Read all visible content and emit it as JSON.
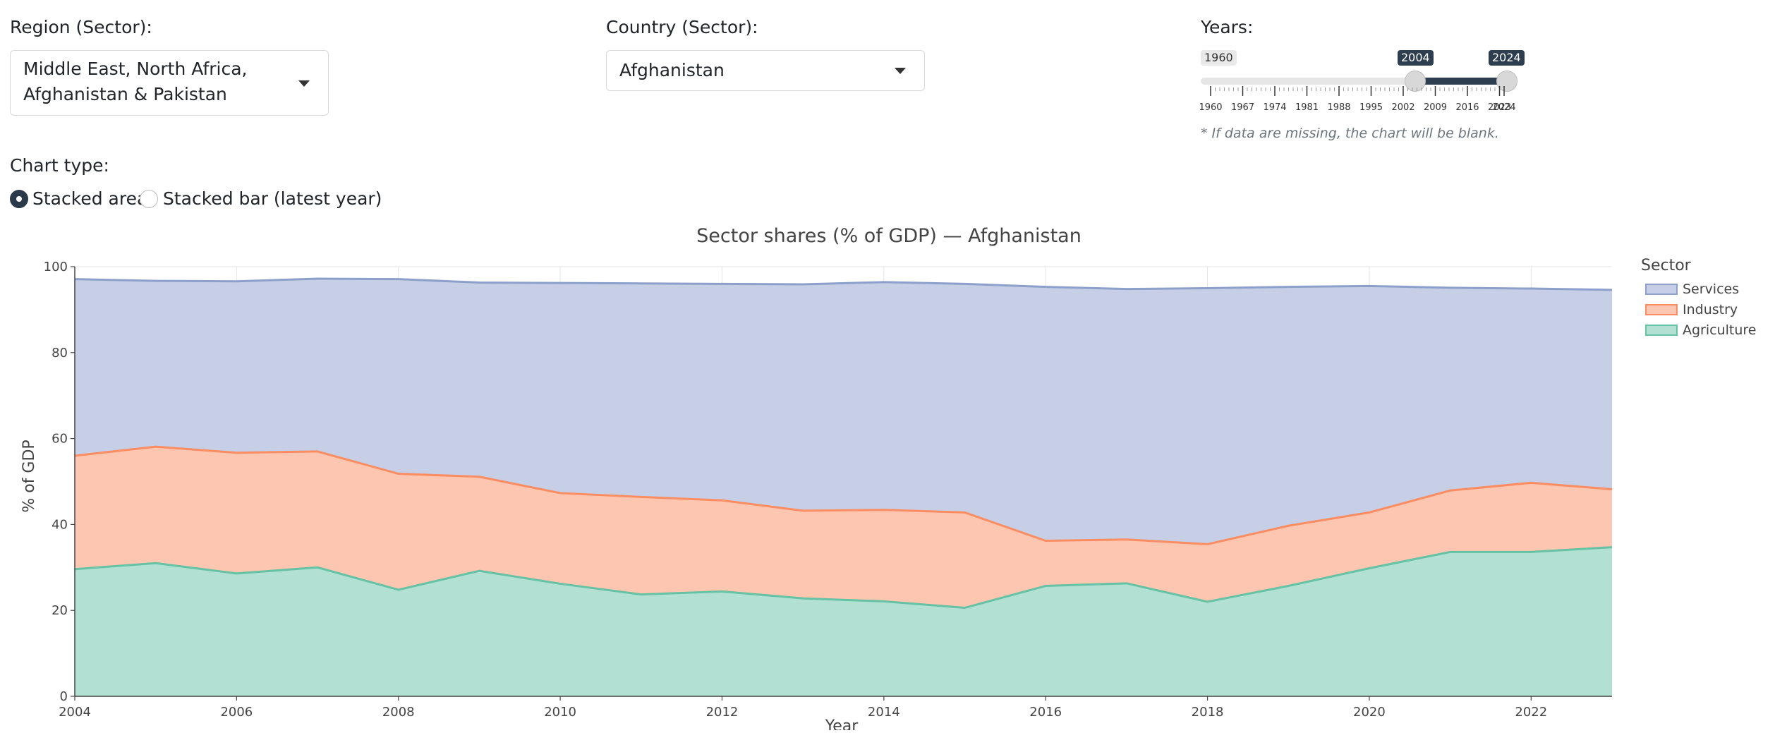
{
  "controls": {
    "region_label": "Region (Sector):",
    "region_value_line1": "Middle East, North Africa,",
    "region_value_line2": "Afghanistan & Pakistan",
    "country_label": "Country (Sector):",
    "country_value": "Afghanistan",
    "years_label": "Years:",
    "years_min": "1960",
    "years_start": "2004",
    "years_end": "2024",
    "years_ticks": [
      "1960",
      "1967",
      "1974",
      "1981",
      "1988",
      "1995",
      "2002",
      "2009",
      "2016",
      "2023",
      "2024"
    ],
    "missing_note": "* If data are missing, the chart will be blank.",
    "chart_type_label": "Chart type:",
    "chart_type_options": [
      {
        "label": "Stacked area",
        "selected": true
      },
      {
        "label": "Stacked bar (latest year)",
        "selected": false
      }
    ]
  },
  "chart_data": {
    "type": "area",
    "stacked": true,
    "title": "Sector shares (% of GDP) — Afghanistan",
    "xlabel": "Year",
    "ylabel": "% of GDP",
    "xlim": [
      2004,
      2023
    ],
    "ylim": [
      0,
      100
    ],
    "x_ticks": [
      2004,
      2006,
      2008,
      2010,
      2012,
      2014,
      2016,
      2018,
      2020,
      2022
    ],
    "y_ticks": [
      0,
      20,
      40,
      60,
      80,
      100
    ],
    "grid": true,
    "legend_title": "Sector",
    "legend_position": "top-right",
    "x": [
      2004,
      2005,
      2006,
      2007,
      2008,
      2009,
      2010,
      2011,
      2012,
      2013,
      2014,
      2015,
      2016,
      2017,
      2018,
      2019,
      2020,
      2021,
      2022,
      2023
    ],
    "series": [
      {
        "name": "Agriculture",
        "line_color": "#66c2a5",
        "fill_color": "#b2e0d2",
        "values": [
          29.6,
          31.0,
          28.6,
          30.0,
          24.8,
          29.2,
          26.2,
          23.7,
          24.4,
          22.8,
          22.1,
          20.6,
          25.7,
          26.3,
          22.0,
          25.7,
          29.8,
          33.6,
          33.6,
          34.7
        ]
      },
      {
        "name": "Industry",
        "line_color": "#fc8d62",
        "fill_color": "#fdc6b0",
        "values": [
          26.4,
          27.1,
          28.1,
          27.0,
          27.0,
          21.9,
          21.1,
          22.7,
          21.2,
          20.4,
          21.3,
          22.2,
          10.5,
          10.2,
          13.4,
          14.0,
          13.0,
          14.3,
          16.1,
          13.5
        ]
      },
      {
        "name": "Services",
        "line_color": "#8da0cb",
        "fill_color": "#c6cfe5",
        "values": [
          41.1,
          38.6,
          39.9,
          40.2,
          45.3,
          45.2,
          48.9,
          49.7,
          50.4,
          52.7,
          53.0,
          53.2,
          59.1,
          58.3,
          59.6,
          55.6,
          52.7,
          47.2,
          45.2,
          46.4
        ]
      }
    ]
  }
}
